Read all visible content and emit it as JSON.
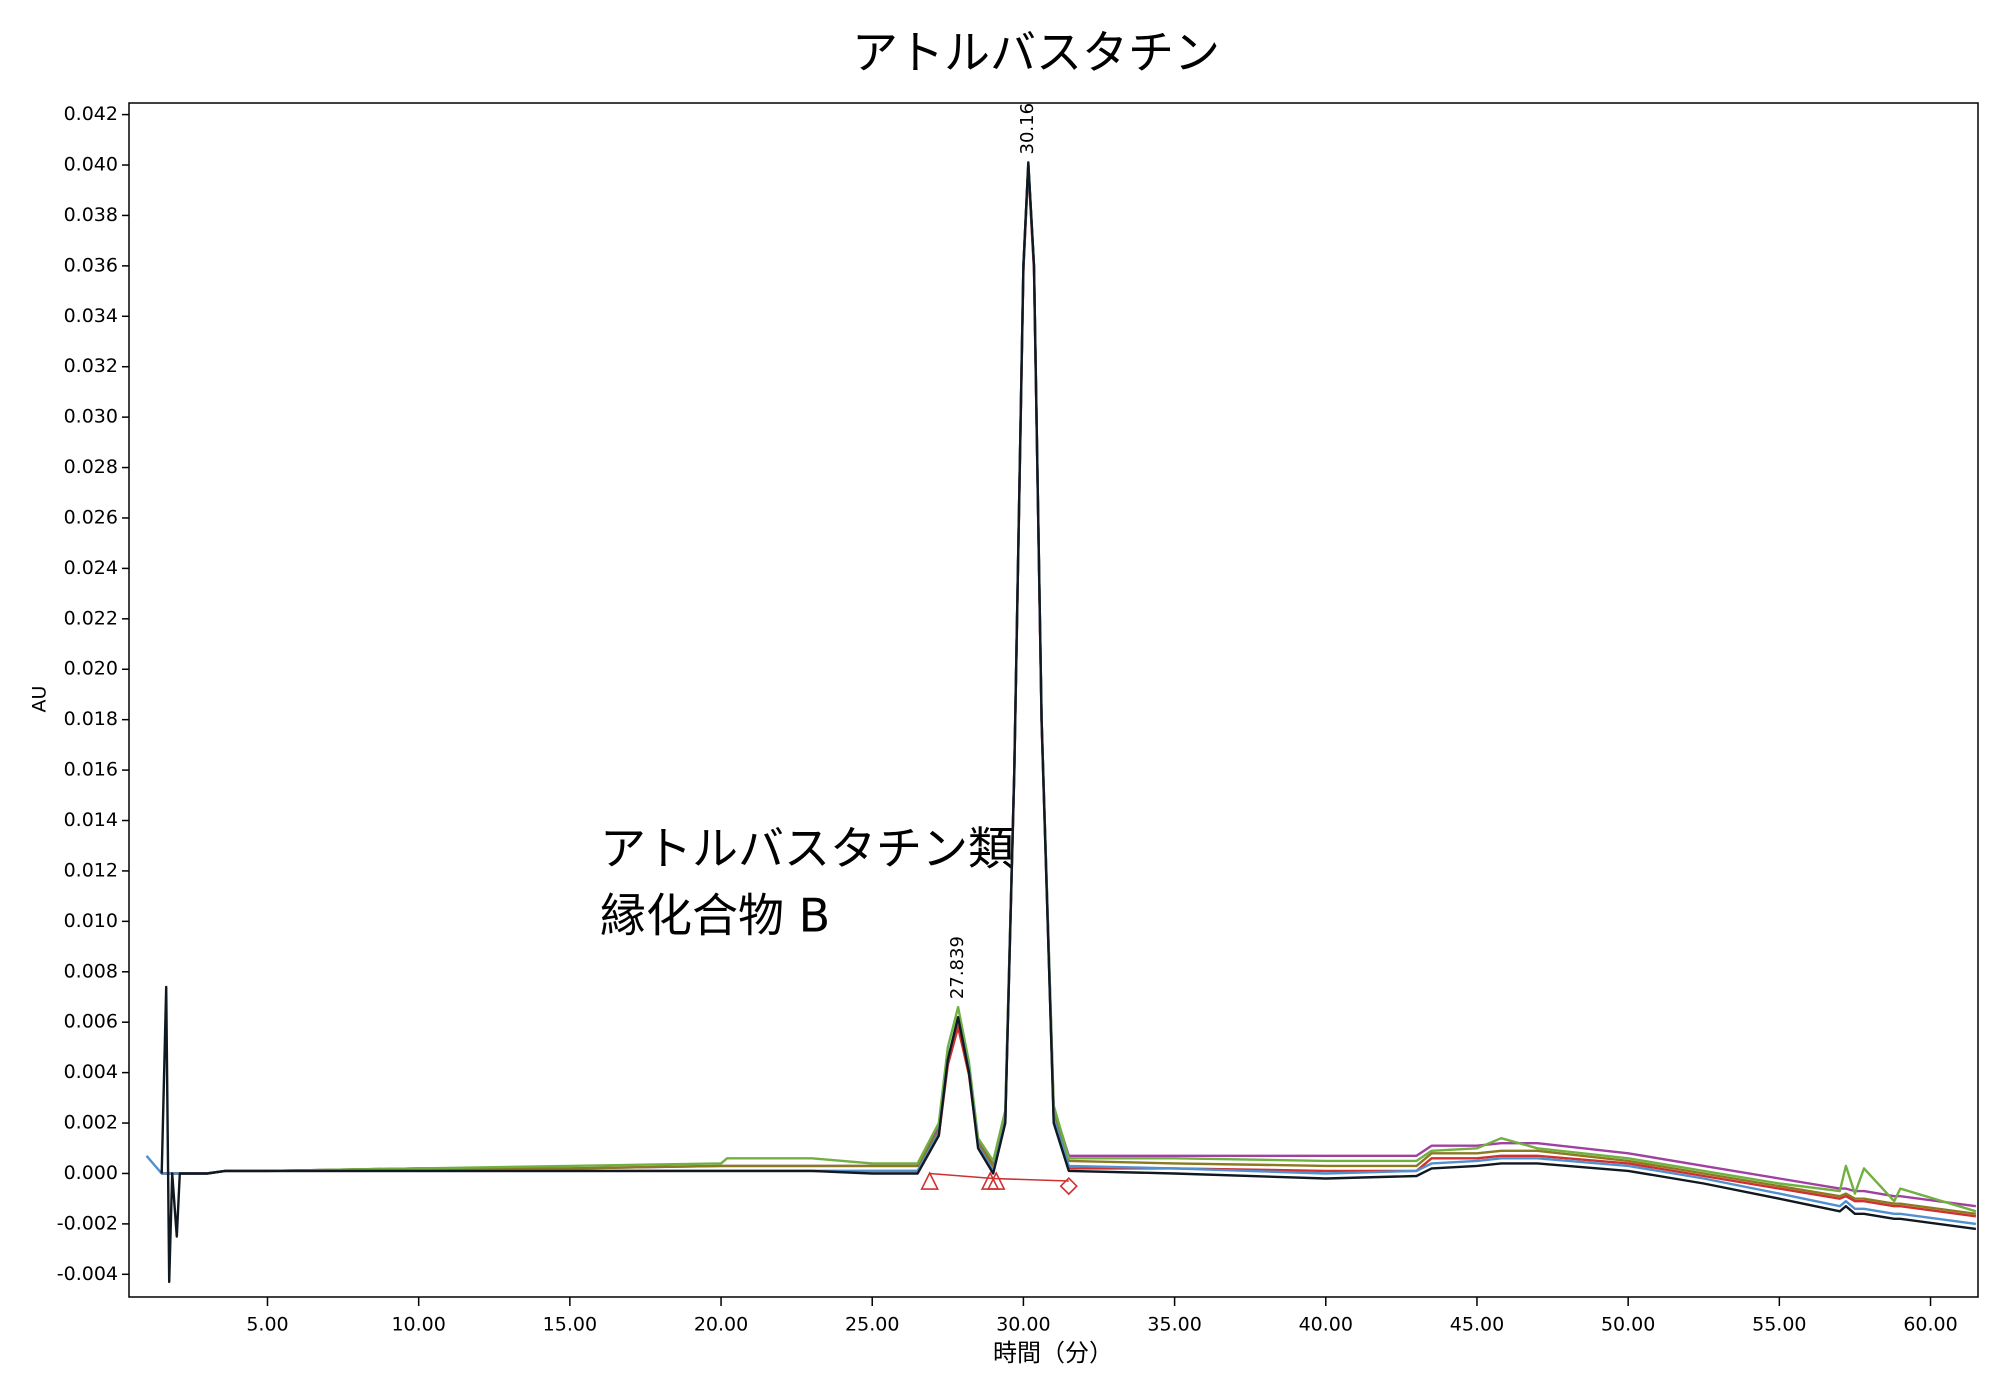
{
  "chart_data": {
    "type": "line",
    "title": "アトルバスタチン",
    "x_label": "時間（分）",
    "y_label": "AU",
    "annotation": [
      "アトルバスタチン類",
      "縁化合物 B"
    ],
    "xlim": [
      0.42,
      61.57
    ],
    "ylim": [
      -0.0049,
      0.04246
    ],
    "xticks": [
      {
        "value": 5,
        "label": "5.00"
      },
      {
        "value": 10,
        "label": "10.00"
      },
      {
        "value": 15,
        "label": "15.00"
      },
      {
        "value": 20,
        "label": "20.00"
      },
      {
        "value": 25,
        "label": "25.00"
      },
      {
        "value": 30,
        "label": "30.00"
      },
      {
        "value": 35,
        "label": "35.00"
      },
      {
        "value": 40,
        "label": "40.00"
      },
      {
        "value": 45,
        "label": "45.00"
      },
      {
        "value": 50,
        "label": "50.00"
      },
      {
        "value": 55,
        "label": "55.00"
      },
      {
        "value": 60,
        "label": "60.00"
      }
    ],
    "yticks": [
      {
        "value": -0.004,
        "label": "-0.004"
      },
      {
        "value": -0.002,
        "label": "-0.002"
      },
      {
        "value": 0,
        "label": "0.000"
      },
      {
        "value": 0.002,
        "label": "0.002"
      },
      {
        "value": 0.004,
        "label": "0.004"
      },
      {
        "value": 0.006,
        "label": "0.006"
      },
      {
        "value": 0.008,
        "label": "0.008"
      },
      {
        "value": 0.01,
        "label": "0.010"
      },
      {
        "value": 0.012,
        "label": "0.012"
      },
      {
        "value": 0.014,
        "label": "0.014"
      },
      {
        "value": 0.016,
        "label": "0.016"
      },
      {
        "value": 0.018,
        "label": "0.018"
      },
      {
        "value": 0.02,
        "label": "0.020"
      },
      {
        "value": 0.022,
        "label": "0.022"
      },
      {
        "value": 0.024,
        "label": "0.024"
      },
      {
        "value": 0.026,
        "label": "0.026"
      },
      {
        "value": 0.028,
        "label": "0.028"
      },
      {
        "value": 0.03,
        "label": "0.030"
      },
      {
        "value": 0.032,
        "label": "0.032"
      },
      {
        "value": 0.034,
        "label": "0.034"
      },
      {
        "value": 0.036,
        "label": "0.036"
      },
      {
        "value": 0.038,
        "label": "0.038"
      },
      {
        "value": 0.04,
        "label": "0.040"
      },
      {
        "value": 0.042,
        "label": "0.042"
      }
    ],
    "x": [
      1.0,
      1.5,
      1.65,
      1.75,
      1.85,
      2.0,
      2.1,
      2.3,
      3.0,
      3.6,
      5,
      10,
      15,
      20,
      20.2,
      23,
      25,
      26.5,
      27.2,
      27.5,
      27.84,
      28.2,
      28.5,
      29.0,
      29.4,
      29.7,
      30.0,
      30.16,
      30.35,
      30.6,
      31.0,
      31.5,
      35,
      40,
      43,
      43.5,
      45,
      45.8,
      47,
      50,
      52.5,
      55,
      57,
      57.2,
      57.5,
      57.8,
      58.8,
      59,
      61.5
    ],
    "series": [
      {
        "color": "#a040a0",
        "values": [
          null,
          0.0,
          0.0,
          0.0,
          0.0,
          0.0,
          0.0,
          0.0,
          0.0,
          0.0001,
          0.0001,
          0.0002,
          0.0002,
          0.0003,
          0.0003,
          0.0003,
          0.0003,
          0.0003,
          0.0018,
          0.0046,
          0.006,
          0.0042,
          0.0013,
          0.0004,
          0.0024,
          0.016,
          0.036,
          0.04,
          0.036,
          0.018,
          0.0026,
          0.0007,
          0.0007,
          0.0007,
          0.0007,
          0.0011,
          0.0011,
          0.0012,
          0.0012,
          0.0008,
          0.0003,
          -0.0002,
          -0.0006,
          -0.0006,
          -0.0007,
          -0.0007,
          -0.0009,
          -0.0009,
          -0.0013
        ]
      },
      {
        "color": "#8a7a20",
        "values": [
          null,
          0.0,
          0.0,
          0.0,
          0.0,
          0.0,
          0.0,
          0.0,
          0.0,
          0.0001,
          0.0001,
          0.0002,
          0.0002,
          0.0003,
          0.0003,
          0.0003,
          0.0003,
          0.0003,
          0.0017,
          0.0045,
          0.0061,
          0.0041,
          0.0012,
          0.0003,
          0.0023,
          0.016,
          0.036,
          0.04,
          0.036,
          0.018,
          0.0025,
          0.0005,
          0.0004,
          0.0003,
          0.0003,
          0.0008,
          0.0008,
          0.0009,
          0.0009,
          0.0005,
          0.0,
          -0.0005,
          -0.0009,
          -0.0008,
          -0.001,
          -0.001,
          -0.0012,
          -0.0012,
          -0.0016
        ]
      },
      {
        "color": "#70b040",
        "values": [
          null,
          0.0,
          0.0,
          0.0,
          0.0,
          0.0,
          0.0,
          0.0,
          0.0,
          0.0001,
          0.0001,
          0.0002,
          0.0003,
          0.0004,
          0.0006,
          0.0006,
          0.0004,
          0.0004,
          0.002,
          0.005,
          0.0066,
          0.0044,
          0.0014,
          0.0005,
          0.0025,
          0.016,
          0.036,
          0.0401,
          0.036,
          0.018,
          0.0027,
          0.0006,
          0.0006,
          0.0005,
          0.0005,
          0.0009,
          0.001,
          0.0014,
          0.001,
          0.0006,
          0.0001,
          -0.0004,
          -0.0007,
          0.0003,
          -0.0008,
          0.0002,
          -0.0011,
          -0.0006,
          -0.0015
        ]
      },
      {
        "color": "#d03030",
        "values": [
          null,
          0.0,
          0.0,
          0.0,
          0.0,
          0.0,
          0.0,
          0.0,
          0.0,
          0.0001,
          0.0001,
          0.0001,
          0.0001,
          0.0001,
          0.0001,
          0.0001,
          0.0001,
          0.0001,
          0.0015,
          0.0043,
          0.0058,
          0.0039,
          0.0011,
          0.0001,
          0.0021,
          0.0158,
          0.0358,
          0.0399,
          0.0358,
          0.0178,
          0.0022,
          0.0002,
          0.0002,
          0.0001,
          0.0001,
          0.0006,
          0.0006,
          0.0007,
          0.0007,
          0.0004,
          -0.0001,
          -0.0006,
          -0.001,
          -0.0009,
          -0.0011,
          -0.0011,
          -0.0013,
          -0.0013,
          -0.0017
        ]
      },
      {
        "color": "#5090d0",
        "values": [
          0.0007,
          0.0,
          0.0,
          0.0,
          0.0,
          0.0,
          0.0,
          0.0,
          0.0,
          0.0001,
          0.0001,
          0.0001,
          0.0001,
          0.0001,
          0.0001,
          0.0001,
          0.0001,
          0.0001,
          0.0016,
          0.0045,
          0.0062,
          0.0041,
          0.0011,
          0.0001,
          0.0021,
          0.016,
          0.036,
          0.04,
          0.036,
          0.018,
          0.0022,
          0.0003,
          0.0002,
          0.0,
          0.0001,
          0.0004,
          0.0005,
          0.0006,
          0.0006,
          0.0003,
          -0.0002,
          -0.0008,
          -0.0013,
          -0.0011,
          -0.0014,
          -0.0014,
          -0.0016,
          -0.0016,
          -0.002
        ]
      },
      {
        "color": "#101820",
        "values": [
          null,
          0.0,
          0.0074,
          -0.0043,
          0.0,
          -0.0025,
          0.0,
          0.0,
          0.0,
          0.0001,
          0.0001,
          0.0001,
          0.0001,
          0.0001,
          0.0001,
          0.0001,
          0.0,
          0.0,
          0.0015,
          0.0045,
          0.0062,
          0.004,
          0.001,
          0.0,
          0.002,
          0.016,
          0.036,
          0.0401,
          0.036,
          0.018,
          0.002,
          0.0001,
          0.0,
          -0.0002,
          -0.0001,
          0.0002,
          0.0003,
          0.0004,
          0.0004,
          0.0001,
          -0.0004,
          -0.001,
          -0.0015,
          -0.0013,
          -0.0016,
          -0.0016,
          -0.0018,
          -0.0018,
          -0.0022
        ]
      }
    ],
    "peak_labels": [
      {
        "x": 27.839,
        "label": "27.839",
        "height": 0.0066
      },
      {
        "x": 30.16,
        "label": "30.16",
        "height": 0.0401
      }
    ],
    "integration_color": "#d03030",
    "integration_baseline": {
      "x": [
        26.9,
        29.0,
        31.5
      ],
      "values": [
        0.0,
        -0.0002,
        -0.0003
      ]
    },
    "markers": [
      {
        "x": 26.9,
        "y": -0.0003,
        "shape": "triangle"
      },
      {
        "x": 28.9,
        "y": -0.0003,
        "shape": "triangle"
      },
      {
        "x": 29.1,
        "y": -0.0003,
        "shape": "triangle"
      },
      {
        "x": 31.5,
        "y": -0.0005,
        "shape": "diamond"
      }
    ]
  }
}
